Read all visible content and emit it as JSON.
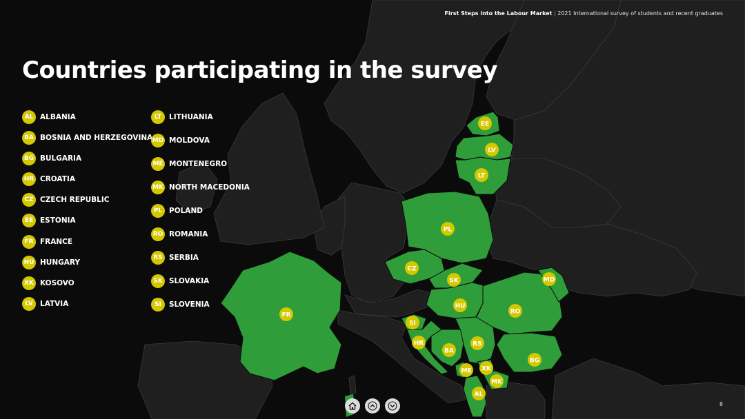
{
  "header": {
    "title_bold": "First Steps into the Labour Market",
    "separator": "|",
    "subtitle": "2021 International survey of students and recent graduates"
  },
  "title": "Countries participating in the survey",
  "colors": {
    "participating": "#2f9e3a",
    "non_participating": "#1f1f1f",
    "background": "#0b0b0b",
    "badge": "#d4c800"
  },
  "legend_left": [
    {
      "code": "AL",
      "name": "ALBANIA"
    },
    {
      "code": "BA",
      "name": "BOSNIA AND HERZEGOVINA"
    },
    {
      "code": "BG",
      "name": "BULGARIA"
    },
    {
      "code": "HR",
      "name": "CROATIA"
    },
    {
      "code": "CZ",
      "name": "CZECH REPUBLIC"
    },
    {
      "code": "EE",
      "name": "ESTONIA"
    },
    {
      "code": "FR",
      "name": "FRANCE"
    },
    {
      "code": "HU",
      "name": "HUNGARY"
    },
    {
      "code": "XK",
      "name": "KOSOVO"
    },
    {
      "code": "LV",
      "name": "LATVIA"
    }
  ],
  "legend_right": [
    {
      "code": "LT",
      "name": "LITHUANIA"
    },
    {
      "code": "MD",
      "name": "MOLDOVA"
    },
    {
      "code": "ME",
      "name": "MONTENEGRO"
    },
    {
      "code": "MK",
      "name": "NORTH MACEDONIA"
    },
    {
      "code": "PL",
      "name": "POLAND"
    },
    {
      "code": "RO",
      "name": "ROMANIA"
    },
    {
      "code": "RS",
      "name": "SERBIA"
    },
    {
      "code": "SK",
      "name": "SLOVAKIA"
    },
    {
      "code": "SI",
      "name": "SLOVENIA"
    }
  ],
  "map_labels": {
    "EE": "EE",
    "LV": "LV",
    "LT": "LT",
    "PL": "PL",
    "CZ": "CZ",
    "SK": "SK",
    "HU": "HU",
    "RO": "RO",
    "MD": "MD",
    "FR": "FR",
    "SI": "SI",
    "HR": "HR",
    "BA": "BA",
    "RS": "RS",
    "BG": "BG",
    "ME": "ME",
    "XK": "XK",
    "MK": "MK",
    "AL": "AL"
  },
  "nav": {
    "home_icon": "home-icon",
    "up_icon": "chevron-up-icon",
    "down_icon": "chevron-down-icon"
  },
  "page_number": "8"
}
